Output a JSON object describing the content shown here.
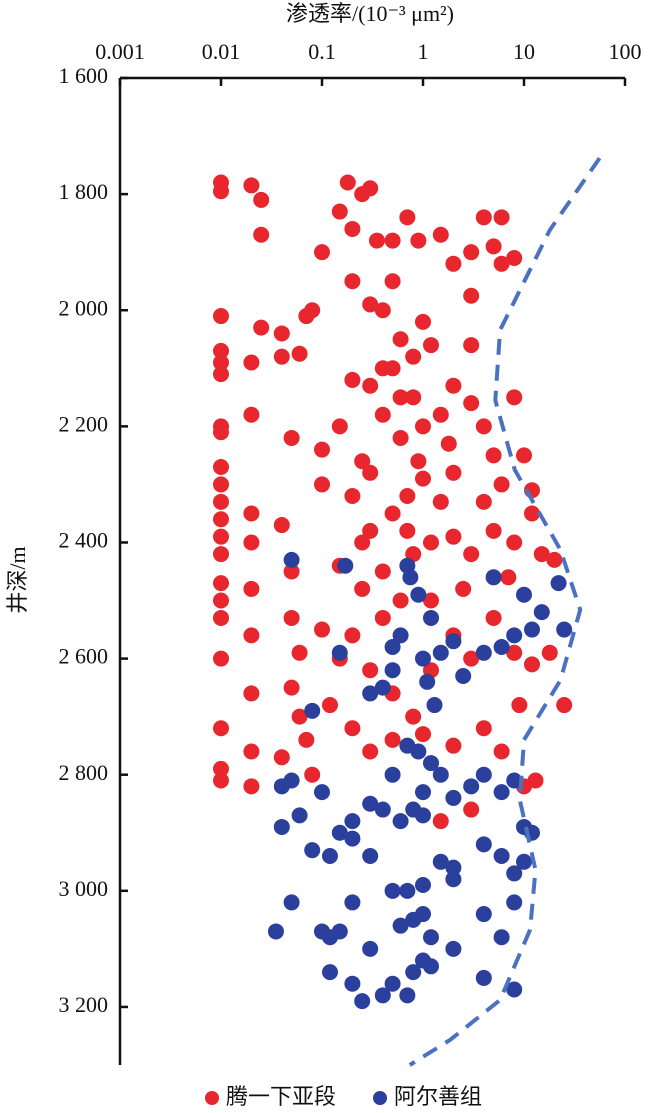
{
  "chart_data": {
    "type": "scatter",
    "x_label": "渗透率/(10⁻³ μm²)",
    "y_label": "井深/m",
    "xscale": "log",
    "xlim": [
      0.001,
      100
    ],
    "xticks": [
      0.001,
      0.01,
      0.1,
      1,
      10,
      100
    ],
    "ylim": [
      1600,
      3300
    ],
    "y_inverted": true,
    "yticks": [
      {
        "value": 1600,
        "label": "1 600"
      },
      {
        "value": 1800,
        "label": "1 800"
      },
      {
        "value": 2000,
        "label": "2 000"
      },
      {
        "value": 2200,
        "label": "2 200"
      },
      {
        "value": 2400,
        "label": "2 400"
      },
      {
        "value": 2600,
        "label": "2 600"
      },
      {
        "value": 2800,
        "label": "2 800"
      },
      {
        "value": 3000,
        "label": "3 000"
      },
      {
        "value": 3200,
        "label": "3 200"
      }
    ],
    "series": [
      {
        "name": "腾一下亚段",
        "color": "#e8262d",
        "x": [
          0.01,
          0.01,
          0.01,
          0.01,
          0.01,
          0.01,
          0.01,
          0.01,
          0.01,
          0.01,
          0.01,
          0.01,
          0.01,
          0.01,
          0.01,
          0.01,
          0.01,
          0.01,
          0.01,
          0.01,
          0.01,
          0.02,
          0.025,
          0.025,
          0.02,
          0.025,
          0.02,
          0.02,
          0.02,
          0.02,
          0.02,
          0.02,
          0.02,
          0.02,
          0.04,
          0.04,
          0.06,
          0.07,
          0.08,
          0.05,
          0.04,
          0.05,
          0.05,
          0.06,
          0.05,
          0.06,
          0.07,
          0.08,
          0.04,
          0.1,
          0.15,
          0.18,
          0.2,
          0.25,
          0.3,
          0.35,
          0.5,
          0.7,
          0.9,
          1.5,
          2,
          3,
          4,
          6,
          5,
          8,
          6,
          3,
          0.2,
          0.3,
          0.4,
          0.5,
          0.6,
          0.8,
          1,
          1.2,
          0.5,
          0.3,
          0.2,
          0.15,
          0.1,
          0.25,
          0.4,
          0.6,
          0.8,
          1,
          1.5,
          2,
          3,
          4,
          5,
          8,
          10,
          12,
          6,
          4,
          2,
          1.5,
          1,
          0.7,
          0.5,
          0.3,
          0.2,
          0.1,
          0.15,
          0.25,
          0.4,
          0.6,
          0.8,
          1.2,
          2,
          3,
          5,
          8,
          12,
          15,
          20,
          0.1,
          0.15,
          0.3,
          0.5,
          0.8,
          1.2,
          2,
          3,
          5,
          8,
          12,
          18,
          25,
          0.12,
          0.2,
          0.3,
          0.5,
          1,
          2,
          4,
          6,
          3,
          1.5,
          13,
          10,
          0.2,
          0.4,
          0.25,
          2.5,
          1.2,
          0.7,
          0.3,
          1.8,
          0.9,
          0.4,
          3,
          0.6,
          7,
          9
        ],
        "values": [
          1780,
          1795,
          2010,
          2070,
          2090,
          2110,
          2200,
          2210,
          2270,
          2300,
          2330,
          2360,
          2390,
          2420,
          2470,
          2500,
          2530,
          2600,
          2720,
          2790,
          2810,
          1785,
          1810,
          1870,
          2090,
          2030,
          2180,
          2350,
          2400,
          2480,
          2560,
          2660,
          2760,
          2820,
          2040,
          2080,
          2075,
          2010,
          2000,
          2220,
          2370,
          2450,
          2530,
          2590,
          2650,
          2700,
          2740,
          2800,
          2770,
          1900,
          1830,
          1780,
          1860,
          1800,
          1790,
          1880,
          1880,
          1840,
          1880,
          1870,
          1920,
          1900,
          1840,
          1840,
          1890,
          1910,
          1920,
          1975,
          1950,
          1990,
          2000,
          1950,
          2050,
          2080,
          2020,
          2060,
          2100,
          2130,
          2120,
          2200,
          2240,
          2260,
          2180,
          2220,
          2150,
          2200,
          2180,
          2130,
          2160,
          2200,
          2250,
          2150,
          2250,
          2310,
          2300,
          2330,
          2280,
          2330,
          2290,
          2320,
          2350,
          2380,
          2320,
          2300,
          2440,
          2480,
          2450,
          2500,
          2420,
          2400,
          2390,
          2420,
          2380,
          2400,
          2350,
          2420,
          2430,
          2550,
          2600,
          2620,
          2660,
          2700,
          2620,
          2560,
          2600,
          2530,
          2590,
          2610,
          2590,
          2680,
          2680,
          2720,
          2760,
          2740,
          2730,
          2750,
          2720,
          2760,
          2860,
          2880,
          2810,
          2820,
          2560,
          2530,
          2400,
          2480,
          2500,
          2380,
          2280,
          2230,
          2260,
          2100,
          2060,
          2150,
          2460,
          2680
        ]
      },
      {
        "name": "阿尔善组",
        "color": "#2b3f9c",
        "x": [
          0.035,
          0.05,
          0.17,
          0.7,
          0.75,
          0.9,
          1.2,
          5,
          10,
          15,
          22,
          25,
          12,
          8,
          6,
          4,
          2,
          1.5,
          1,
          0.6,
          0.5,
          0.5,
          0.4,
          0.3,
          0.15,
          0.08,
          1.1,
          1.3,
          2.5,
          0.7,
          0.9,
          1.2,
          1.5,
          1,
          0.5,
          0.3,
          0.2,
          0.1,
          0.05,
          0.04,
          0.04,
          0.06,
          0.08,
          0.12,
          0.15,
          0.2,
          0.3,
          0.4,
          0.6,
          0.8,
          1,
          2,
          3,
          4,
          6,
          8,
          10,
          12,
          10,
          8,
          6,
          4,
          2,
          2,
          1.5,
          1,
          0.7,
          0.5,
          0.05,
          0.2,
          0.15,
          0.1,
          0.12,
          0.3,
          0.6,
          0.8,
          1,
          1.2,
          2,
          4,
          6,
          8,
          0.12,
          0.2,
          0.25,
          0.4,
          0.5,
          0.7,
          0.8,
          1,
          1.2,
          4,
          8
        ],
        "values": [
          3070,
          2430,
          2440,
          2440,
          2460,
          2490,
          2530,
          2460,
          2490,
          2520,
          2470,
          2550,
          2550,
          2560,
          2580,
          2590,
          2570,
          2590,
          2600,
          2560,
          2580,
          2620,
          2650,
          2660,
          2590,
          2690,
          2640,
          2680,
          2630,
          2750,
          2760,
          2780,
          2800,
          2830,
          2800,
          2850,
          2880,
          2830,
          2810,
          2820,
          2890,
          2870,
          2930,
          2940,
          2900,
          2910,
          2940,
          2860,
          2880,
          2860,
          2870,
          2840,
          2820,
          2800,
          2830,
          2810,
          2890,
          2900,
          2950,
          2970,
          2940,
          2920,
          2960,
          2980,
          2950,
          2990,
          3000,
          3000,
          3020,
          3020,
          3070,
          3070,
          3080,
          3100,
          3060,
          3050,
          3040,
          3080,
          3100,
          3040,
          3080,
          3020,
          3140,
          3160,
          3190,
          3180,
          3160,
          3180,
          3140,
          3120,
          3130,
          3150,
          3170
        ]
      }
    ],
    "boundary": {
      "color": "#4a72c0",
      "dashed": true,
      "x": [
        56,
        18,
        5.8,
        5.2,
        8.1,
        23,
        36,
        23,
        10,
        9.1,
        13,
        11.5,
        5.8,
        1.85,
        0.74
      ],
      "values": [
        1738,
        1862,
        2034,
        2155,
        2275,
        2413,
        2516,
        2637,
        2740,
        2844,
        2964,
        3067,
        3188,
        3257,
        3300
      ]
    }
  }
}
